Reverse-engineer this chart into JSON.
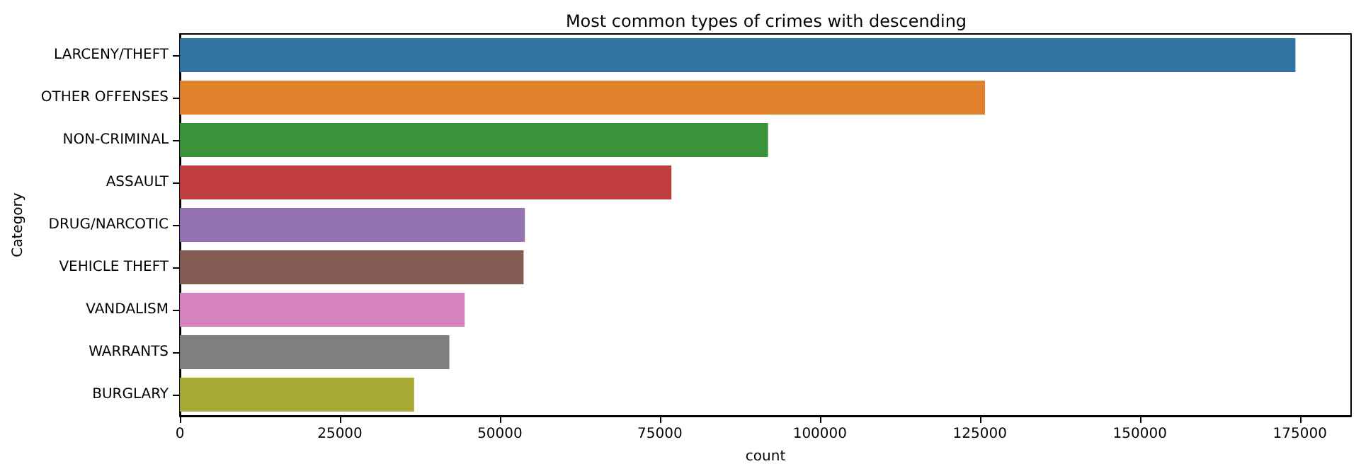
{
  "chart_data": {
    "type": "bar",
    "orientation": "horizontal",
    "title": "Most common types of crimes with descending",
    "xlabel": "count",
    "ylabel": "Category",
    "categories": [
      "LARCENY/THEFT",
      "OTHER OFFENSES",
      "NON-CRIMINAL",
      "ASSAULT",
      "DRUG/NARCOTIC",
      "VEHICLE THEFT",
      "VANDALISM",
      "WARRANTS",
      "BURGLARY"
    ],
    "values": [
      174300,
      125800,
      91900,
      76800,
      53900,
      53700,
      44500,
      42100,
      36600
    ],
    "colors": [
      "#3274a1",
      "#e1812c",
      "#3a923a",
      "#c03d3e",
      "#9372b2",
      "#845b53",
      "#d684bd",
      "#7f7f7f",
      "#a9aa35"
    ],
    "xlim": [
      0,
      183000
    ],
    "xticks": [
      0,
      25000,
      50000,
      75000,
      100000,
      125000,
      150000,
      175000
    ],
    "grid": false
  }
}
